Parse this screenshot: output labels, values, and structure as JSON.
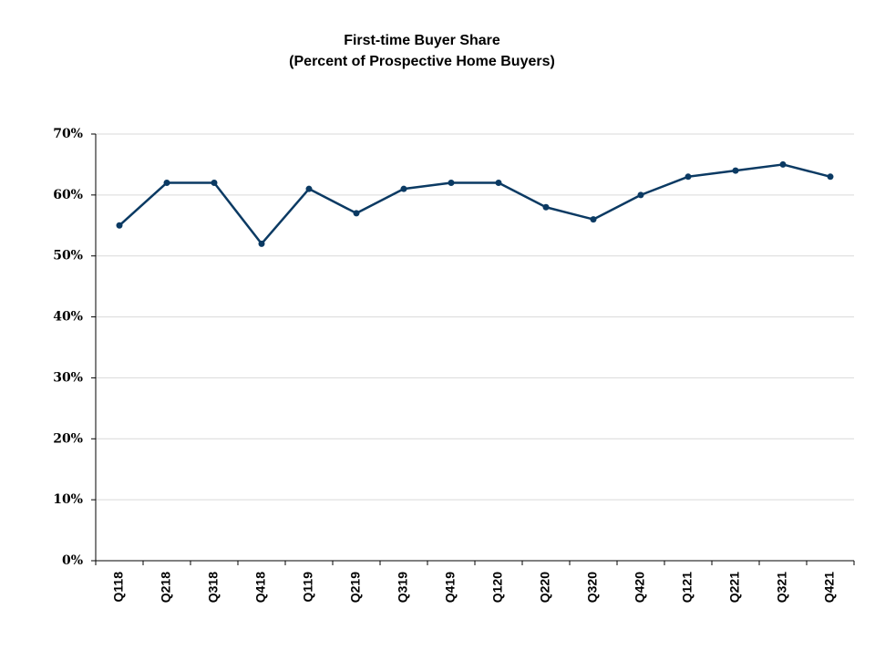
{
  "chart_data": {
    "type": "line",
    "title": "First-time Buyer Share",
    "subtitle": "(Percent of Prospective Home Buyers)",
    "xlabel": "",
    "ylabel": "",
    "categories": [
      "Q118",
      "Q218",
      "Q318",
      "Q418",
      "Q119",
      "Q219",
      "Q319",
      "Q419",
      "Q120",
      "Q220",
      "Q320",
      "Q420",
      "Q121",
      "Q221",
      "Q321",
      "Q421"
    ],
    "series": [
      {
        "values": [
          55,
          62,
          62,
          52,
          61,
          57,
          61,
          62,
          62,
          58,
          56,
          60,
          63,
          64,
          65,
          63
        ],
        "color": "#0b3a63"
      }
    ],
    "ylim": [
      0,
      70
    ],
    "y_ticks": [
      0,
      10,
      20,
      30,
      40,
      50,
      60,
      70
    ],
    "y_tick_labels": [
      "0%",
      "10%",
      "20%",
      "30%",
      "40%",
      "50%",
      "60%",
      "70%"
    ],
    "grid": true,
    "legend": "none",
    "x_tick_label_rotation": "vertical"
  }
}
